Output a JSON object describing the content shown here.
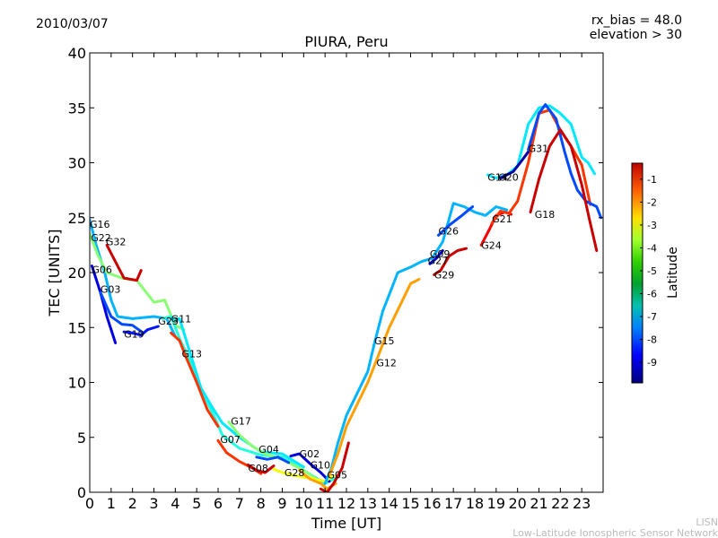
{
  "header": {
    "date": "2010/03/07",
    "rx_bias": "rx_bias = 48.0",
    "elevation": "elevation > 30"
  },
  "footer": {
    "line1": "LISN",
    "line2": "Low-Latitude Ionospheric Sensor Network"
  },
  "colorbar": {
    "label": "Latitude",
    "ticks": [
      "-1",
      "-2",
      "-3",
      "-4",
      "-5",
      "-6",
      "-7",
      "-8",
      "-9"
    ],
    "range": [
      -9.9,
      -0.3
    ]
  },
  "chart_data": {
    "type": "scatter",
    "title": "PIURA, Peru",
    "xlabel": "Time [UT]",
    "ylabel": "TEC [UNITS]",
    "xlim": [
      0,
      24
    ],
    "ylim": [
      0,
      40
    ],
    "xticks": [
      "0",
      "1",
      "2",
      "3",
      "4",
      "5",
      "6",
      "7",
      "8",
      "9",
      "10",
      "11",
      "12",
      "13",
      "14",
      "15",
      "16",
      "17",
      "18",
      "19",
      "20",
      "21",
      "22",
      "23"
    ],
    "yticks": [
      "0",
      "5",
      "10",
      "15",
      "20",
      "25",
      "30",
      "35",
      "40"
    ],
    "grid": false,
    "series": [
      {
        "name": "G16",
        "lat": -7.0,
        "points": [
          [
            0.0,
            24.8
          ],
          [
            0.3,
            22.5
          ],
          [
            0.7,
            20.0
          ],
          [
            1.0,
            17.5
          ],
          [
            1.3,
            16.0
          ],
          [
            2.0,
            15.8
          ],
          [
            3.0,
            16.0
          ],
          [
            3.6,
            15.8
          ],
          [
            4.0,
            14.2
          ]
        ]
      },
      {
        "name": "G22",
        "lat": -5.0,
        "points": [
          [
            0.0,
            23.5
          ],
          [
            0.4,
            21.5
          ],
          [
            0.8,
            20.0
          ],
          [
            1.5,
            19.5
          ],
          [
            2.2,
            19.3
          ],
          [
            3.0,
            17.3
          ],
          [
            3.5,
            17.5
          ],
          [
            4.0,
            15.2
          ],
          [
            4.4,
            14.8
          ]
        ]
      },
      {
        "name": "G32",
        "lat": -1.0,
        "points": [
          [
            0.8,
            22.5
          ],
          [
            1.2,
            21.0
          ],
          [
            1.6,
            19.5
          ],
          [
            2.2,
            19.3
          ],
          [
            2.4,
            20.2
          ]
        ]
      },
      {
        "name": "G06",
        "lat": -9.0,
        "points": [
          [
            0.1,
            20.6
          ],
          [
            0.5,
            18.2
          ],
          [
            0.8,
            16.0
          ],
          [
            1.2,
            13.6
          ]
        ]
      },
      {
        "name": "G03",
        "lat": -8.0,
        "points": [
          [
            0.5,
            18.2
          ],
          [
            1.0,
            16.0
          ],
          [
            1.5,
            15.3
          ],
          [
            2.0,
            15.2
          ],
          [
            2.5,
            14.5
          ]
        ]
      },
      {
        "name": "G19",
        "lat": -8.5,
        "points": [
          [
            1.6,
            14.6
          ],
          [
            2.0,
            14.5
          ],
          [
            2.4,
            14.3
          ],
          [
            2.7,
            14.8
          ],
          [
            3.2,
            15.1
          ]
        ]
      },
      {
        "name": "G23",
        "lat": -6.0,
        "points": [
          [
            3.4,
            15.8
          ],
          [
            3.8,
            16.0
          ],
          [
            4.2,
            14.0
          ],
          [
            4.8,
            11.5
          ],
          [
            5.3,
            9.0
          ],
          [
            5.8,
            7.0
          ],
          [
            6.2,
            5.2
          ],
          [
            7.0,
            4.0
          ],
          [
            8.0,
            3.4
          ],
          [
            9.0,
            3.2
          ],
          [
            10.0,
            2.0
          ],
          [
            11.0,
            0.8
          ],
          [
            11.5,
            1.3
          ]
        ]
      },
      {
        "name": "G11",
        "lat": -6.5,
        "points": [
          [
            3.8,
            15.8
          ],
          [
            4.2,
            15.8
          ],
          [
            4.8,
            12.0
          ],
          [
            5.2,
            9.5
          ],
          [
            5.7,
            7.8
          ],
          [
            6.2,
            6.3
          ],
          [
            7.0,
            5.0
          ],
          [
            8.0,
            3.7
          ],
          [
            9.0,
            3.5
          ],
          [
            10.0,
            2.3
          ]
        ]
      },
      {
        "name": "G13",
        "lat": -2.0,
        "points": [
          [
            3.8,
            14.5
          ],
          [
            4.2,
            13.8
          ],
          [
            4.5,
            12.3
          ],
          [
            5.0,
            10.0
          ],
          [
            5.5,
            7.5
          ],
          [
            6.0,
            6.0
          ]
        ]
      },
      {
        "name": "G17",
        "lat": -5.0,
        "points": [
          [
            6.5,
            6.4
          ],
          [
            7.0,
            5.2
          ],
          [
            7.6,
            4.2
          ],
          [
            8.2,
            3.5
          ],
          [
            9.0,
            3.0
          ],
          [
            10.0,
            2.0
          ],
          [
            10.6,
            1.2
          ]
        ]
      },
      {
        "name": "G07",
        "lat": -2.0,
        "points": [
          [
            6.0,
            4.7
          ],
          [
            6.4,
            3.6
          ],
          [
            7.0,
            2.8
          ],
          [
            7.6,
            2.2
          ],
          [
            8.0,
            1.7
          ]
        ]
      },
      {
        "name": "G04",
        "lat": -8.0,
        "points": [
          [
            7.8,
            3.2
          ],
          [
            8.3,
            3.0
          ],
          [
            8.8,
            3.2
          ],
          [
            9.3,
            2.7
          ]
        ]
      },
      {
        "name": "G08",
        "lat": -1.0,
        "points": [
          [
            7.4,
            2.5
          ],
          [
            7.8,
            2.0
          ],
          [
            8.2,
            1.8
          ],
          [
            8.6,
            2.4
          ]
        ]
      },
      {
        "name": "G02",
        "lat": -9.0,
        "points": [
          [
            9.4,
            3.3
          ],
          [
            9.8,
            3.5
          ],
          [
            10.3,
            2.6
          ],
          [
            10.8,
            1.8
          ],
          [
            11.2,
            1.0
          ]
        ]
      },
      {
        "name": "G28",
        "lat": -4.0,
        "points": [
          [
            8.6,
            2.1
          ],
          [
            9.0,
            1.8
          ],
          [
            9.6,
            1.5
          ],
          [
            10.3,
            1.3
          ],
          [
            11.0,
            1.0
          ],
          [
            11.4,
            1.5
          ]
        ]
      },
      {
        "name": "G10",
        "lat": -3.0,
        "points": [
          [
            9.8,
            2.0
          ],
          [
            10.3,
            1.2
          ],
          [
            10.8,
            0.8
          ],
          [
            11.1,
            0.3
          ],
          [
            11.5,
            0.8
          ]
        ]
      },
      {
        "name": "G05",
        "lat": -1.0,
        "points": [
          [
            10.8,
            0.3
          ],
          [
            11.1,
            0.0
          ],
          [
            11.4,
            0.8
          ],
          [
            11.8,
            2.2
          ],
          [
            12.1,
            4.5
          ]
        ]
      },
      {
        "name": "G15",
        "lat": -7.0,
        "points": [
          [
            11.0,
            0.8
          ],
          [
            11.3,
            2.2
          ],
          [
            11.6,
            4.5
          ],
          [
            12.0,
            7.0
          ],
          [
            12.5,
            9.0
          ],
          [
            13.0,
            11.0
          ],
          [
            13.3,
            13.5
          ],
          [
            13.7,
            16.5
          ],
          [
            14.1,
            18.5
          ],
          [
            14.4,
            20.0
          ],
          [
            15.0,
            20.5
          ],
          [
            15.5,
            21.0
          ],
          [
            16.0,
            21.3
          ]
        ]
      },
      {
        "name": "G12",
        "lat": -3.0,
        "points": [
          [
            11.2,
            1.5
          ],
          [
            11.6,
            3.5
          ],
          [
            12.0,
            6.0
          ],
          [
            12.5,
            8.0
          ],
          [
            13.0,
            10.0
          ],
          [
            13.5,
            12.5
          ],
          [
            14.0,
            15.0
          ],
          [
            14.5,
            17.0
          ],
          [
            15.0,
            19.0
          ],
          [
            15.4,
            19.4
          ]
        ]
      },
      {
        "name": "G09",
        "lat": -7.0,
        "points": [
          [
            16.0,
            21.3
          ],
          [
            16.5,
            22.8
          ],
          [
            17.0,
            26.3
          ],
          [
            17.5,
            26.0
          ],
          [
            18.0,
            25.5
          ],
          [
            18.5,
            25.2
          ],
          [
            19.0,
            26.0
          ],
          [
            19.5,
            25.7
          ]
        ]
      },
      {
        "name": "G27",
        "lat": -9.0,
        "points": [
          [
            15.9,
            20.8
          ],
          [
            16.2,
            21.3
          ],
          [
            16.5,
            22.0
          ]
        ]
      },
      {
        "name": "G26",
        "lat": -8.0,
        "points": [
          [
            16.3,
            23.4
          ],
          [
            16.8,
            24.3
          ],
          [
            17.4,
            25.2
          ],
          [
            17.9,
            26.0
          ]
        ]
      },
      {
        "name": "G29",
        "lat": -1.0,
        "points": [
          [
            16.1,
            19.8
          ],
          [
            16.4,
            20.2
          ],
          [
            16.8,
            21.5
          ],
          [
            17.2,
            22.0
          ],
          [
            17.6,
            22.2
          ]
        ]
      },
      {
        "name": "G24",
        "lat": -1.5,
        "points": [
          [
            18.3,
            22.5
          ],
          [
            18.7,
            24.0
          ],
          [
            19.0,
            25.2
          ],
          [
            19.4,
            25.5
          ],
          [
            19.7,
            25.3
          ]
        ]
      },
      {
        "name": "G21",
        "lat": -2.0,
        "points": [
          [
            18.8,
            24.5
          ],
          [
            19.2,
            25.6
          ],
          [
            19.6,
            25.4
          ],
          [
            20.0,
            26.5
          ],
          [
            20.5,
            30.0
          ],
          [
            21.0,
            34.5
          ],
          [
            21.5,
            34.8
          ],
          [
            22.0,
            33.0
          ],
          [
            22.5,
            31.5
          ],
          [
            23.0,
            29.8
          ],
          [
            23.4,
            26.2
          ]
        ]
      },
      {
        "name": "G14",
        "lat": -6.5,
        "points": [
          [
            18.6,
            28.9
          ],
          [
            19.0,
            28.6
          ],
          [
            19.5,
            28.9
          ],
          [
            20.0,
            29.7
          ],
          [
            20.5,
            33.5
          ],
          [
            21.0,
            35.0
          ],
          [
            21.5,
            35.2
          ],
          [
            22.0,
            34.5
          ],
          [
            22.5,
            33.5
          ],
          [
            23.0,
            30.5
          ],
          [
            23.3,
            30.0
          ],
          [
            23.6,
            29.0
          ]
        ]
      },
      {
        "name": "G20",
        "lat": -9.5,
        "points": [
          [
            19.2,
            28.6
          ],
          [
            19.5,
            28.9
          ],
          [
            19.8,
            29.2
          ],
          [
            20.2,
            30.2
          ],
          [
            20.5,
            31.0
          ]
        ]
      },
      {
        "name": "G31",
        "lat": -8.0,
        "points": [
          [
            20.5,
            31.2
          ],
          [
            21.0,
            34.5
          ],
          [
            21.3,
            35.3
          ],
          [
            21.8,
            34.0
          ],
          [
            22.2,
            31.0
          ],
          [
            22.5,
            29.0
          ],
          [
            22.8,
            27.5
          ],
          [
            23.2,
            26.5
          ],
          [
            23.7,
            26.0
          ],
          [
            23.9,
            25.0
          ]
        ]
      },
      {
        "name": "G18",
        "lat": -1.0,
        "points": [
          [
            20.6,
            25.5
          ],
          [
            21.0,
            28.5
          ],
          [
            21.5,
            31.5
          ],
          [
            22.0,
            33.0
          ],
          [
            22.5,
            31.5
          ],
          [
            23.0,
            28.0
          ],
          [
            23.4,
            24.5
          ],
          [
            23.7,
            22.0
          ]
        ]
      }
    ],
    "labels": [
      {
        "text": "G16",
        "x": 0.0,
        "y": 24.4
      },
      {
        "text": "G22",
        "x": 0.05,
        "y": 23.2
      },
      {
        "text": "G32",
        "x": 0.75,
        "y": 22.8
      },
      {
        "text": "G06",
        "x": 0.1,
        "y": 20.3
      },
      {
        "text": "G03",
        "x": 0.5,
        "y": 18.5
      },
      {
        "text": "G19",
        "x": 1.6,
        "y": 14.4
      },
      {
        "text": "G23",
        "x": 3.2,
        "y": 15.6
      },
      {
        "text": "G11",
        "x": 3.8,
        "y": 15.8
      },
      {
        "text": "G13",
        "x": 4.3,
        "y": 12.6
      },
      {
        "text": "G17",
        "x": 6.6,
        "y": 6.5
      },
      {
        "text": "G07",
        "x": 6.1,
        "y": 4.8
      },
      {
        "text": "G04",
        "x": 7.9,
        "y": 3.9
      },
      {
        "text": "G08",
        "x": 7.4,
        "y": 2.2
      },
      {
        "text": "G02",
        "x": 9.8,
        "y": 3.5
      },
      {
        "text": "G28",
        "x": 9.1,
        "y": 1.8
      },
      {
        "text": "G10",
        "x": 10.3,
        "y": 2.5
      },
      {
        "text": "G05",
        "x": 11.1,
        "y": 1.6
      },
      {
        "text": "G15",
        "x": 13.3,
        "y": 13.8
      },
      {
        "text": "G12",
        "x": 13.4,
        "y": 11.8
      },
      {
        "text": "G09",
        "x": 15.9,
        "y": 21.7
      },
      {
        "text": "G27",
        "x": 15.8,
        "y": 21.1
      },
      {
        "text": "G26",
        "x": 16.3,
        "y": 23.8
      },
      {
        "text": "G29",
        "x": 16.1,
        "y": 19.8
      },
      {
        "text": "G24",
        "x": 18.3,
        "y": 22.5
      },
      {
        "text": "G21",
        "x": 18.8,
        "y": 24.9
      },
      {
        "text": "G14",
        "x": 18.6,
        "y": 28.7
      },
      {
        "text": "G20",
        "x": 19.1,
        "y": 28.7
      },
      {
        "text": "G31",
        "x": 20.5,
        "y": 31.3
      },
      {
        "text": "G18",
        "x": 20.8,
        "y": 25.3
      }
    ]
  }
}
